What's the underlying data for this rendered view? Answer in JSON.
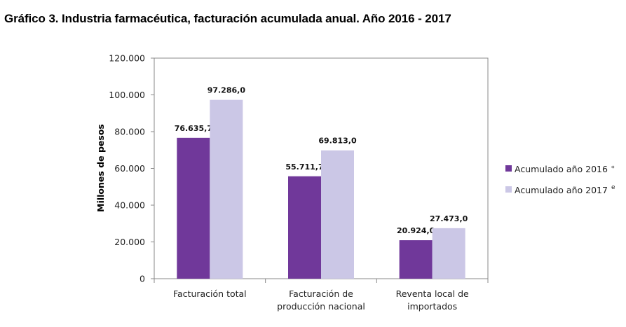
{
  "page": {
    "title": "Gráfico 3. Industria farmacéutica, facturación acumulada anual. Año 2016 - 2017"
  },
  "chart_data": {
    "type": "bar",
    "title": "Gráfico 3. Industria farmacéutica, facturación acumulada anual. Año 2016 - 2017",
    "xlabel": "",
    "ylabel": "Millones de pesos",
    "ylim": [
      0,
      120000
    ],
    "yticks": [
      0,
      20000,
      40000,
      60000,
      80000,
      100000,
      120000
    ],
    "ytick_labels": [
      "0",
      "20.000",
      "40.000",
      "60.000",
      "80.000",
      "100.000",
      "120.000"
    ],
    "grid": false,
    "legend_position": "right",
    "categories": [
      [
        "Facturación total"
      ],
      [
        "Facturación de",
        "producción nacional"
      ],
      [
        "Reventa local de",
        "importados"
      ]
    ],
    "series": [
      {
        "name": "Acumulado año 2016",
        "marker": "*",
        "color": "#70389a",
        "values": [
          76635.7,
          55711.7,
          20924.0
        ],
        "labels": [
          "76.635,7",
          "55.711,7",
          "20.924,0"
        ]
      },
      {
        "name": "Acumulado año 2017",
        "marker": "e",
        "color": "#cbc7e6",
        "values": [
          97286.0,
          69813.0,
          27473.0
        ],
        "labels": [
          "97.286,0",
          "69.813,0",
          "27.473,0"
        ]
      }
    ]
  }
}
